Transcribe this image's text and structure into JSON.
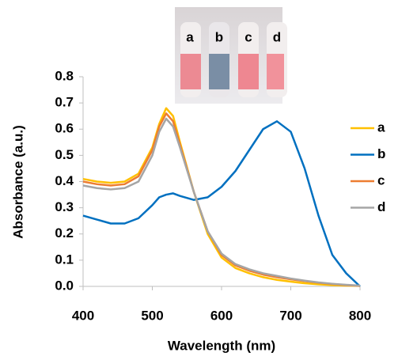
{
  "chart_data": {
    "type": "line",
    "x_label": "Wavelength (nm)",
    "y_label": "Absorbance (a.u.)",
    "inset_labels": [
      "a",
      "b",
      "c",
      "d"
    ],
    "x": [
      400,
      420,
      440,
      460,
      480,
      500,
      510,
      520,
      530,
      540,
      560,
      580,
      600,
      620,
      640,
      660,
      680,
      700,
      720,
      740,
      760,
      780,
      800
    ],
    "series": [
      {
        "name": "a",
        "color": "#FFC000",
        "values": [
          0.41,
          0.4,
          0.395,
          0.4,
          0.43,
          0.53,
          0.62,
          0.68,
          0.65,
          0.55,
          0.36,
          0.2,
          0.11,
          0.07,
          0.05,
          0.035,
          0.025,
          0.018,
          0.012,
          0.008,
          0.005,
          0.003,
          0.002
        ]
      },
      {
        "name": "b",
        "color": "#0070C0",
        "values": [
          0.27,
          0.255,
          0.24,
          0.24,
          0.26,
          0.31,
          0.34,
          0.35,
          0.355,
          0.345,
          0.33,
          0.34,
          0.38,
          0.44,
          0.52,
          0.6,
          0.63,
          0.59,
          0.45,
          0.27,
          0.12,
          0.05,
          0.0
        ]
      },
      {
        "name": "c",
        "color": "#ED7D31",
        "values": [
          0.4,
          0.39,
          0.385,
          0.39,
          0.42,
          0.52,
          0.61,
          0.66,
          0.63,
          0.54,
          0.36,
          0.21,
          0.12,
          0.08,
          0.06,
          0.045,
          0.035,
          0.027,
          0.02,
          0.014,
          0.009,
          0.005,
          0.002
        ]
      },
      {
        "name": "d",
        "color": "#A5A5A5",
        "values": [
          0.385,
          0.375,
          0.37,
          0.375,
          0.4,
          0.5,
          0.59,
          0.64,
          0.61,
          0.53,
          0.36,
          0.21,
          0.125,
          0.085,
          0.065,
          0.05,
          0.04,
          0.03,
          0.022,
          0.015,
          0.01,
          0.006,
          0.003
        ]
      }
    ],
    "xlim": [
      400,
      800
    ],
    "xticks": [
      400,
      500,
      600,
      700,
      800
    ],
    "ylim": [
      0,
      0.8
    ],
    "yticks": [
      {
        "value": 0,
        "label": "0.0"
      },
      0.1,
      0.2,
      0.3,
      0.4,
      0.5,
      0.6,
      0.7,
      0.8
    ],
    "grid": false,
    "legend": "right"
  }
}
